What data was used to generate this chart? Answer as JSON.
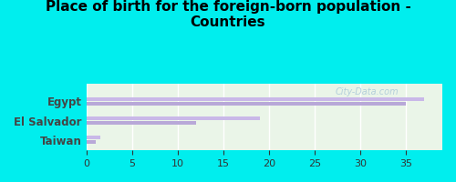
{
  "title": "Place of birth for the foreign-born population -\nCountries",
  "categories": [
    "Taiwan",
    "El Salvador",
    "Egypt"
  ],
  "bar1_values": [
    1.5,
    19.0,
    37.0
  ],
  "bar2_values": [
    1.0,
    12.0,
    35.0
  ],
  "bar_color1": "#c9b8e8",
  "bar_color2": "#b8a8d8",
  "background_color": "#00eeee",
  "plot_bg_color": "#eaf5e8",
  "xlim": [
    0,
    39
  ],
  "xticks": [
    0,
    5,
    10,
    15,
    20,
    25,
    30,
    35
  ],
  "title_fontsize": 11,
  "label_fontsize": 8.5,
  "tick_fontsize": 8,
  "bar_height": 0.18,
  "bar_gap": 0.05,
  "label_color": "#444444",
  "grid_color": "#ffffff",
  "watermark": "City-Data.com",
  "watermark_color": "#aac8d8"
}
